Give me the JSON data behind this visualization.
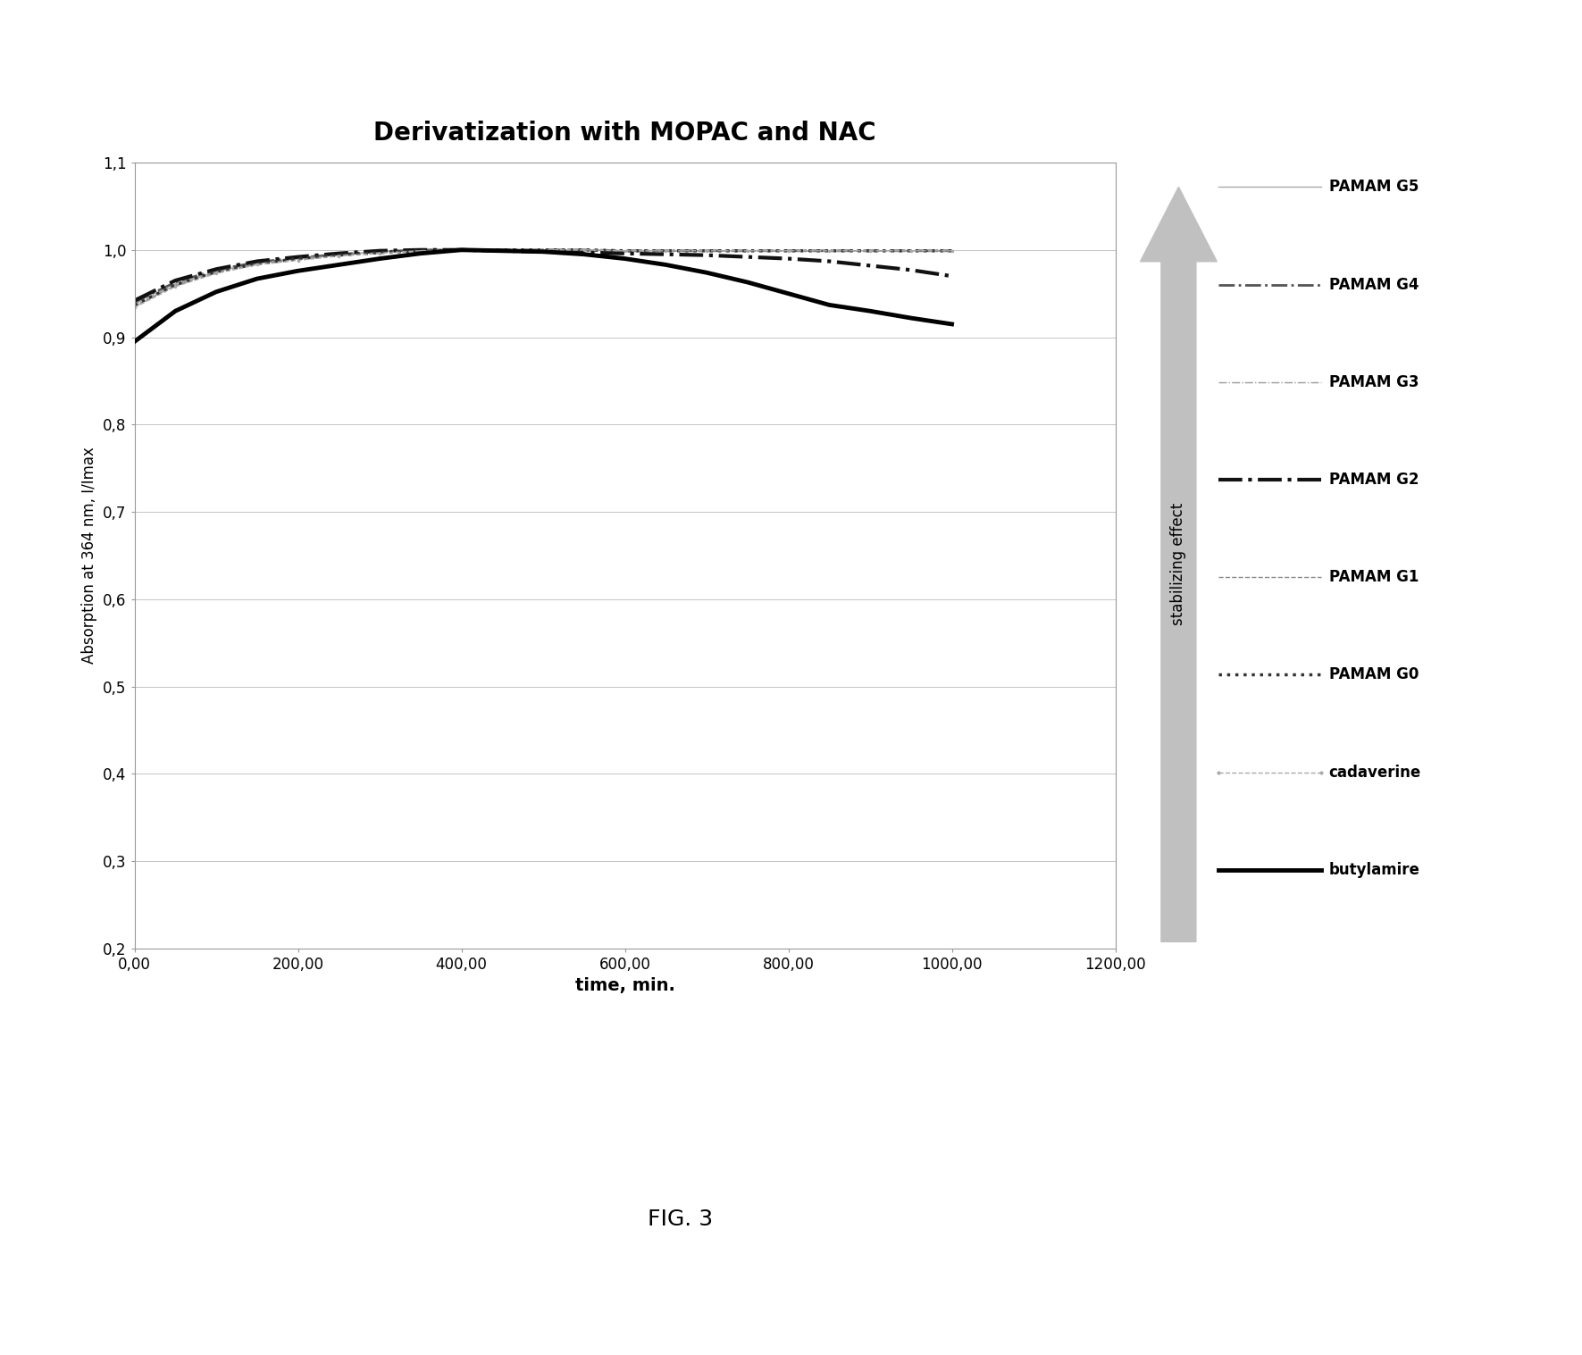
{
  "title": "Derivatization with MOPAC and NAC",
  "xlabel": "time, min.",
  "ylabel": "Absorption at 364 nm, I/Imax",
  "xlim": [
    0,
    1200
  ],
  "ylim": [
    0.2,
    1.1
  ],
  "yticks": [
    0.2,
    0.3,
    0.4,
    0.5,
    0.6,
    0.7,
    0.8,
    0.9,
    1.0,
    1.1
  ],
  "ytick_labels": [
    "0,2",
    "0,3",
    "0,4",
    "0,5",
    "0,6",
    "0,7",
    "0,8",
    "0,9",
    "1,0",
    "1,1"
  ],
  "xticks": [
    0,
    200,
    400,
    600,
    800,
    1000,
    1200
  ],
  "xtick_labels": [
    "0,00",
    "200,00",
    "400,00",
    "600,00",
    "800,00",
    "1000,00",
    "1200,00"
  ],
  "fig_caption": "FIG. 3",
  "background_color": "#ffffff",
  "series": [
    {
      "label": "PAMAM G5",
      "color": "#aaaaaa",
      "linestyle": "-",
      "linewidth": 1.0,
      "marker": "None",
      "x": [
        0,
        50,
        100,
        150,
        200,
        250,
        300,
        350,
        400,
        450,
        500,
        550,
        600,
        650,
        700,
        750,
        800,
        850,
        900,
        950,
        1000
      ],
      "y": [
        0.935,
        0.96,
        0.975,
        0.985,
        0.99,
        0.995,
        0.998,
        1.0,
        1.0,
        1.0,
        1.0,
        1.0,
        0.999,
        0.999,
        0.999,
        0.999,
        0.999,
        0.999,
        0.999,
        0.999,
        0.999
      ]
    },
    {
      "label": "PAMAM G4",
      "color": "#555555",
      "linestyle": "-.",
      "linewidth": 2.0,
      "marker": "None",
      "x": [
        0,
        50,
        100,
        150,
        200,
        250,
        300,
        350,
        400,
        450,
        500,
        550,
        600,
        650,
        700,
        750,
        800,
        850,
        900,
        950,
        1000
      ],
      "y": [
        0.94,
        0.963,
        0.977,
        0.986,
        0.991,
        0.995,
        0.998,
        1.0,
        1.0,
        1.0,
        1.0,
        1.0,
        0.999,
        0.999,
        0.999,
        0.999,
        0.999,
        0.999,
        0.999,
        0.999,
        0.999
      ]
    },
    {
      "label": "PAMAM G3",
      "color": "#999999",
      "linestyle": "-.",
      "linewidth": 1.0,
      "marker": "None",
      "x": [
        0,
        50,
        100,
        150,
        200,
        250,
        300,
        350,
        400,
        450,
        500,
        550,
        600,
        650,
        700,
        750,
        800,
        850,
        900,
        950,
        1000
      ],
      "y": [
        0.938,
        0.961,
        0.976,
        0.985,
        0.99,
        0.995,
        0.997,
        0.999,
        1.0,
        1.0,
        1.0,
        1.0,
        0.999,
        0.999,
        0.999,
        0.999,
        0.999,
        0.999,
        0.999,
        0.999,
        0.999
      ]
    },
    {
      "label": "PAMAM G2",
      "color": "#111111",
      "linestyle": "-.",
      "linewidth": 3.0,
      "marker": "None",
      "x": [
        0,
        50,
        100,
        150,
        200,
        250,
        300,
        350,
        400,
        450,
        500,
        550,
        600,
        650,
        700,
        750,
        800,
        850,
        900,
        950,
        1000
      ],
      "y": [
        0.942,
        0.965,
        0.978,
        0.987,
        0.992,
        0.996,
        0.999,
        1.0,
        1.0,
        0.999,
        0.998,
        0.997,
        0.996,
        0.995,
        0.994,
        0.992,
        0.99,
        0.987,
        0.982,
        0.977,
        0.97
      ]
    },
    {
      "label": "PAMAM G1",
      "color": "#888888",
      "linestyle": "--",
      "linewidth": 1.0,
      "marker": "None",
      "x": [
        0,
        50,
        100,
        150,
        200,
        250,
        300,
        350,
        400,
        450,
        500,
        550,
        600,
        650,
        700,
        750,
        800,
        850,
        900,
        950,
        1000
      ],
      "y": [
        0.936,
        0.959,
        0.974,
        0.984,
        0.989,
        0.994,
        0.997,
        0.999,
        1.0,
        1.0,
        1.0,
        1.0,
        0.999,
        0.999,
        0.999,
        0.999,
        0.999,
        0.999,
        0.999,
        0.999,
        0.999
      ]
    },
    {
      "label": "PAMAM G0",
      "color": "#333333",
      "linestyle": ":",
      "linewidth": 2.5,
      "marker": "None",
      "x": [
        0,
        50,
        100,
        150,
        200,
        250,
        300,
        350,
        400,
        450,
        500,
        550,
        600,
        650,
        700,
        750,
        800,
        850,
        900,
        950,
        1000
      ],
      "y": [
        0.937,
        0.96,
        0.975,
        0.984,
        0.99,
        0.994,
        0.997,
        0.999,
        1.0,
        1.0,
        1.0,
        1.0,
        0.999,
        0.999,
        0.999,
        0.999,
        0.999,
        0.999,
        0.999,
        0.999,
        0.999
      ]
    },
    {
      "label": "cadaverine",
      "color": "#aaaaaa",
      "linestyle": "--",
      "linewidth": 1.0,
      "marker": ".",
      "markersize": 3,
      "x": [
        0,
        50,
        100,
        150,
        200,
        250,
        300,
        350,
        400,
        450,
        500,
        550,
        600,
        650,
        700,
        750,
        800,
        850,
        900,
        950,
        1000
      ],
      "y": [
        0.934,
        0.958,
        0.973,
        0.983,
        0.988,
        0.993,
        0.996,
        0.999,
        1.0,
        1.0,
        1.0,
        1.0,
        0.999,
        0.999,
        0.999,
        0.999,
        0.999,
        0.999,
        0.999,
        0.999,
        0.999
      ]
    },
    {
      "label": "butylamire",
      "color": "#000000",
      "linestyle": "-",
      "linewidth": 3.5,
      "marker": "None",
      "x": [
        0,
        50,
        100,
        150,
        200,
        250,
        300,
        350,
        400,
        450,
        500,
        550,
        600,
        650,
        700,
        750,
        800,
        850,
        900,
        950,
        1000
      ],
      "y": [
        0.895,
        0.93,
        0.952,
        0.967,
        0.976,
        0.983,
        0.99,
        0.996,
        1.0,
        0.999,
        0.998,
        0.995,
        0.99,
        0.983,
        0.974,
        0.963,
        0.95,
        0.937,
        0.93,
        0.922,
        0.915
      ]
    }
  ],
  "legend_items": [
    {
      "label": "PAMAM G5",
      "color": "#aaaaaa",
      "linestyle": "-",
      "linewidth": 1.0,
      "marker": "None"
    },
    {
      "label": "PAMAM G4",
      "color": "#555555",
      "linestyle": "-.",
      "linewidth": 2.0,
      "marker": "None"
    },
    {
      "label": "PAMAM G3",
      "color": "#999999",
      "linestyle": "-.",
      "linewidth": 1.0,
      "marker": "None"
    },
    {
      "label": "PAMAM G2",
      "color": "#111111",
      "linestyle": "-.",
      "linewidth": 3.0,
      "marker": "None"
    },
    {
      "label": "PAMAM G1",
      "color": "#888888",
      "linestyle": "--",
      "linewidth": 1.0,
      "marker": "None"
    },
    {
      "label": "PAMAM G0",
      "color": "#333333",
      "linestyle": ":",
      "linewidth": 2.5,
      "marker": "None"
    },
    {
      "label": "cadaverine",
      "color": "#aaaaaa",
      "linestyle": "--",
      "linewidth": 1.0,
      "marker": "."
    },
    {
      "label": "butylamire",
      "color": "#000000",
      "linestyle": "-",
      "linewidth": 3.5,
      "marker": "None"
    }
  ],
  "arrow_text": "stabilizing effect",
  "arrow_color": "#aaaaaa"
}
